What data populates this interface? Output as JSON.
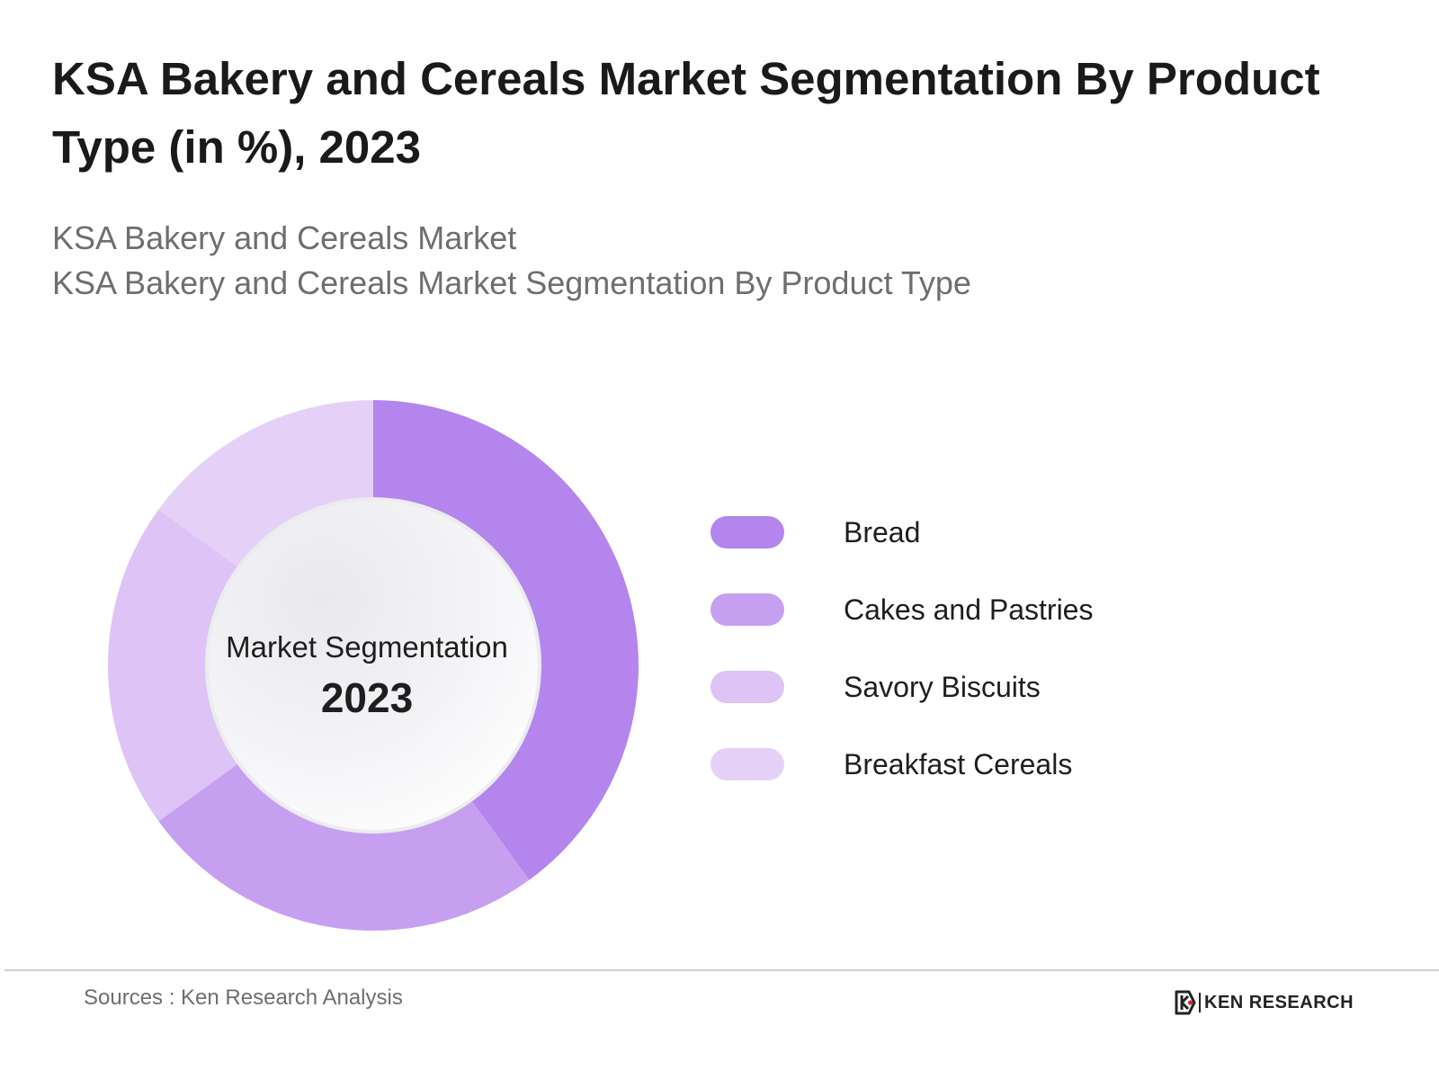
{
  "title": "KSA Bakery and Cereals Market Segmentation By Product Type (in %), 2023",
  "subtitle_line1": "KSA Bakery and Cereals Market",
  "subtitle_line2": "KSA Bakery and Cereals Market Segmentation By Product Type",
  "center_label": {
    "line1": "Market Segmentation",
    "line2": "2023"
  },
  "chart_data": {
    "type": "pie",
    "variant": "donut",
    "categories": [
      "Bread",
      "Cakes and Pastries",
      "Savory Biscuits",
      "Breakfast Cereals"
    ],
    "values": [
      40,
      25,
      20,
      15
    ],
    "colors": [
      "#b485ec",
      "#c79ff0",
      "#ddc3f6",
      "#e5d1f8"
    ],
    "legend_position": "right"
  },
  "footer": {
    "source": "Sources : Ken Research Analysis",
    "brand": "KEN RESEARCH"
  }
}
